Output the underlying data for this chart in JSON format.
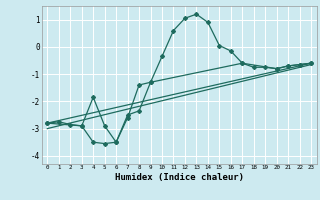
{
  "xlabel": "Humidex (Indice chaleur)",
  "background_color": "#cdeaf0",
  "grid_color": "#ffffff",
  "line_color": "#1e6b5e",
  "xlim": [
    -0.5,
    23.5
  ],
  "ylim": [
    -4.3,
    1.5
  ],
  "yticks": [
    -4,
    -3,
    -2,
    -1,
    0,
    1
  ],
  "xticks": [
    0,
    1,
    2,
    3,
    4,
    5,
    6,
    7,
    8,
    9,
    10,
    11,
    12,
    13,
    14,
    15,
    16,
    17,
    18,
    19,
    20,
    21,
    22,
    23
  ],
  "series1_x": [
    0,
    1,
    2,
    3,
    4,
    5,
    6,
    7,
    8,
    9,
    10,
    11,
    12,
    13,
    14,
    15,
    16,
    17,
    18,
    19,
    20,
    21,
    22,
    23
  ],
  "series1_y": [
    -2.8,
    -2.75,
    -2.85,
    -2.9,
    -3.5,
    -3.55,
    -3.5,
    -2.6,
    -1.4,
    -1.3,
    -0.35,
    0.6,
    1.05,
    1.2,
    0.9,
    0.05,
    -0.15,
    -0.6,
    -0.75,
    -0.75,
    -0.8,
    -0.7,
    -0.65,
    -0.6
  ],
  "series2_x": [
    0,
    3,
    4,
    5,
    6,
    7,
    8,
    9,
    17,
    20,
    21,
    22,
    23
  ],
  "series2_y": [
    -2.8,
    -2.9,
    -1.85,
    -2.9,
    -3.5,
    -2.5,
    -2.35,
    -1.3,
    -0.6,
    -0.8,
    -0.7,
    -0.65,
    -0.6
  ],
  "line3_x": [
    0,
    23
  ],
  "line3_y": [
    -2.8,
    -0.6
  ],
  "line4_x": [
    0,
    23
  ],
  "line4_y": [
    -3.0,
    -0.65
  ]
}
